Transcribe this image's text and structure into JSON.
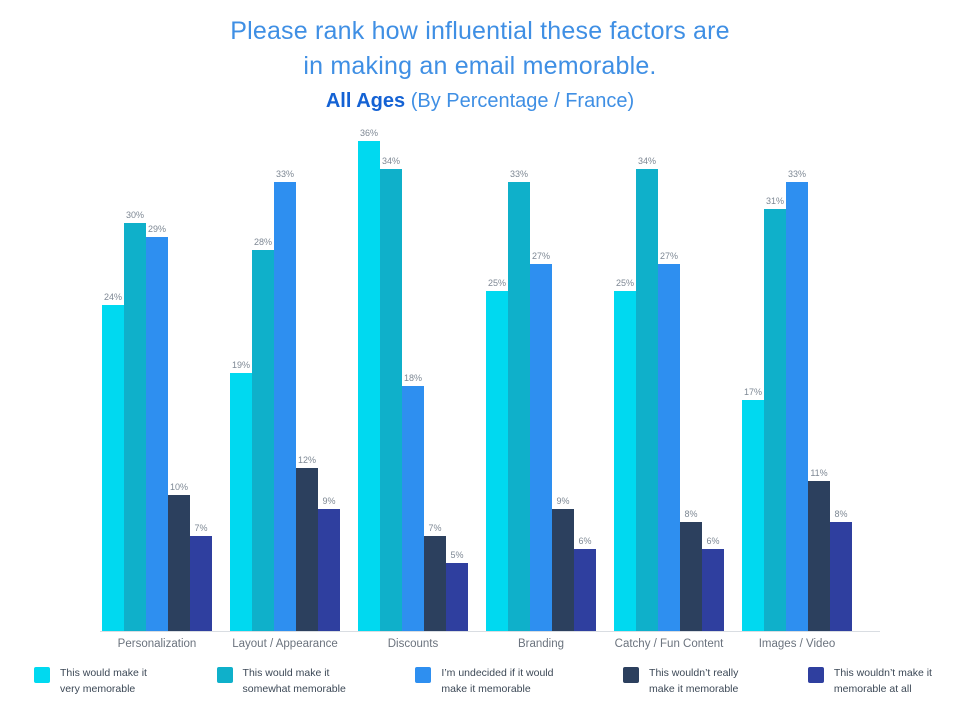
{
  "chart_data": {
    "type": "bar",
    "title_line1": "Please rank how influential these factors are",
    "title_line2": "in making an email memorable.",
    "subtitle_bold": "All Ages",
    "subtitle_rest": " (By Percentage / France)",
    "categories": [
      "Personalization",
      "Layout / Appearance",
      "Discounts",
      "Branding",
      "Catchy / Fun Content",
      "Images / Video"
    ],
    "series": [
      {
        "name": "This would make it very memorable",
        "color": "#00d9f0",
        "values": [
          24,
          19,
          36,
          25,
          25,
          17
        ]
      },
      {
        "name": "This would make it somewhat memorable",
        "color": "#0fb0ca",
        "values": [
          30,
          28,
          34,
          33,
          34,
          31
        ]
      },
      {
        "name": "I’m undecided if it would make it memorable",
        "color": "#2e8ff0",
        "values": [
          29,
          33,
          18,
          27,
          27,
          33
        ]
      },
      {
        "name": "This wouldn’t really make it memorable",
        "color": "#2c405e",
        "values": [
          10,
          12,
          7,
          9,
          8,
          11
        ]
      },
      {
        "name": "This wouldn’t make it memorable at all",
        "color": "#2f3f9f",
        "values": [
          7,
          9,
          5,
          6,
          6,
          8
        ]
      }
    ],
    "value_suffix": "%",
    "ylim": [
      0,
      37
    ],
    "grid": false,
    "legend_position": "bottom",
    "legend": [
      {
        "line1": "This would make it",
        "line2": "very memorable"
      },
      {
        "line1": "This would make it",
        "line2": "somewhat memorable"
      },
      {
        "line1": "I’m undecided if it would",
        "line2": "make it memorable"
      },
      {
        "line1": "This wouldn’t really",
        "line2": "make it memorable"
      },
      {
        "line1": "This wouldn’t make it",
        "line2": "memorable at all"
      }
    ],
    "colors": {
      "title_light_blue": "#3f8fe4",
      "title_dark_blue": "#1462d4",
      "value_label_gray": "#7e8894",
      "category_gray": "#6b737e",
      "legend_text": "#3c4856",
      "axis_line": "#d9dde2"
    }
  }
}
